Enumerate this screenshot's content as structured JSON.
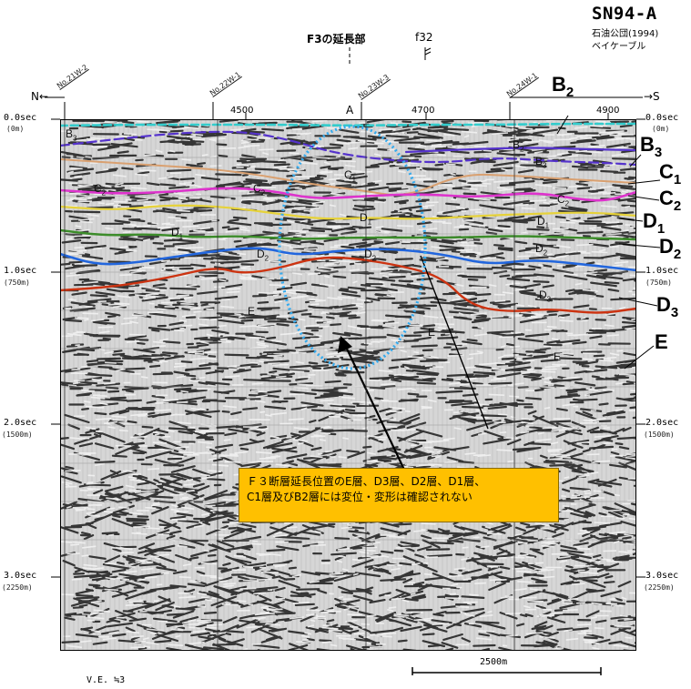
{
  "title": {
    "line_id": "SN94-A",
    "source": "石油公団(1994)",
    "credit": "ベイケーブル"
  },
  "top_labels": {
    "fault_extension": "F3の延長部",
    "fault_f32": "f32",
    "north": "N←",
    "south": "→S",
    "marker_a": "A"
  },
  "line_crossings": [
    "No.21W-2",
    "No.22W-1",
    "No.23W-3",
    "No.24W-1"
  ],
  "shot_points": [
    "4500",
    "4700",
    "4900"
  ],
  "left_axis": [
    {
      "time": "0.0sec",
      "depth": "(0m)"
    },
    {
      "time": "1.0sec",
      "depth": "(750m)"
    },
    {
      "time": "2.0sec",
      "depth": "(1500m)"
    },
    {
      "time": "3.0sec",
      "depth": "(2250m)"
    }
  ],
  "right_axis": [
    {
      "time": "0.0sec",
      "depth": "(0m)"
    },
    {
      "time": "1.0sec",
      "depth": "(750m)"
    },
    {
      "time": "2.0sec",
      "depth": "(1500m)"
    },
    {
      "time": "3.0sec",
      "depth": "(2250m)"
    }
  ],
  "layer_labels_right": [
    {
      "base": "B",
      "sub": "2"
    },
    {
      "base": "B",
      "sub": "3"
    },
    {
      "base": "C",
      "sub": "1"
    },
    {
      "base": "C",
      "sub": "2"
    },
    {
      "base": "D",
      "sub": "1"
    },
    {
      "base": "D",
      "sub": "2"
    },
    {
      "base": "D",
      "sub": "3"
    },
    {
      "base": "E",
      "sub": ""
    }
  ],
  "in_section_labels": [
    {
      "base": "B",
      "sub": "3"
    },
    {
      "base": "C",
      "sub": "2"
    },
    {
      "base": "D",
      "sub": "1"
    },
    {
      "base": "D",
      "sub": "2"
    },
    {
      "base": "E",
      "sub": ""
    },
    {
      "base": "C",
      "sub": "1"
    },
    {
      "base": "C",
      "sub": "2"
    },
    {
      "base": "D",
      "sub": "1"
    },
    {
      "base": "D",
      "sub": "2"
    },
    {
      "base": "E",
      "sub": ""
    },
    {
      "base": "B",
      "sub": "2"
    },
    {
      "base": "B",
      "sub": "3"
    },
    {
      "base": "C",
      "sub": "2"
    },
    {
      "base": "D",
      "sub": "1"
    },
    {
      "base": "D",
      "sub": "2"
    },
    {
      "base": "D",
      "sub": "3"
    },
    {
      "base": "E",
      "sub": ""
    }
  ],
  "callout": {
    "line1": "Ｆ３断層延長位置のE層、D3層、D2層、D1層、",
    "line2": "C1層及びB2層には変位・変形は確認されない"
  },
  "footer": {
    "vertical_exaggeration": "V.E. ≒3",
    "scale_label": "2500m"
  },
  "colors": {
    "B2": "#33cccc",
    "B3": "#5533cc",
    "C1": "#d9a070",
    "C2": "#dd33cc",
    "D1": "#e6d23a",
    "D2": "#3c8c2a",
    "D3": "#2266dd",
    "E": "#cc3311",
    "ellipse": "#33aaee",
    "callout_bg": "#ffc000"
  }
}
